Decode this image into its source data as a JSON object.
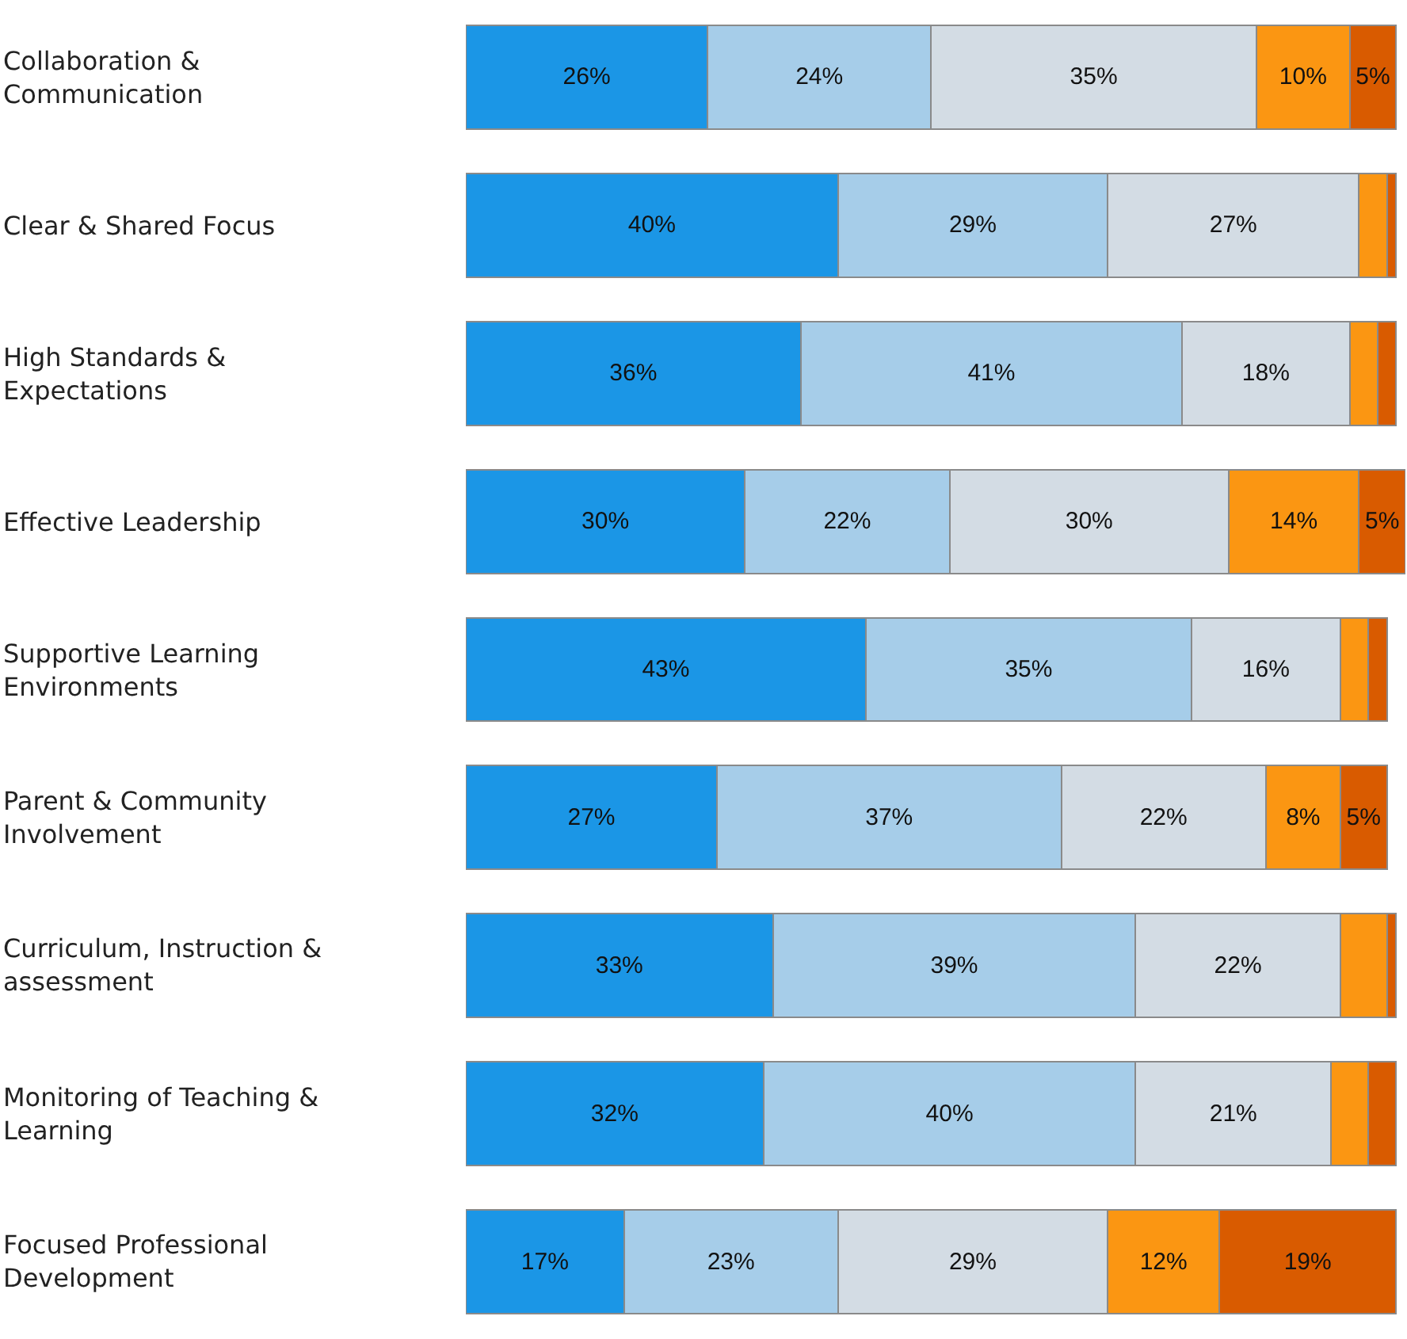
{
  "chart_data": {
    "type": "bar",
    "orientation": "horizontal",
    "stacked": true,
    "categories": [
      "Collaboration & Communication",
      "Clear & Shared Focus",
      "High Standards & Expectations",
      "Effective Leadership",
      "Supportive Learning Environments",
      "Parent & Community Involvement",
      "Curriculum, Instruction & assessment",
      "Monitoring of Teaching & Learning",
      "Focused Professional Development"
    ],
    "series": [
      {
        "color": "#1b96e6",
        "values": [
          26,
          40,
          36,
          30,
          43,
          27,
          33,
          32,
          17
        ],
        "value_labels": [
          "26%",
          "40%",
          "36%",
          "30%",
          "43%",
          "27%",
          "33%",
          "32%",
          "17%"
        ]
      },
      {
        "color": "#a6cde9",
        "values": [
          24,
          29,
          41,
          22,
          35,
          37,
          39,
          40,
          23
        ],
        "value_labels": [
          "24%",
          "29%",
          "41%",
          "22%",
          "35%",
          "37%",
          "39%",
          "40%",
          "23%"
        ]
      },
      {
        "color": "#d3dce4",
        "values": [
          35,
          27,
          18,
          30,
          16,
          22,
          22,
          21,
          29
        ],
        "value_labels": [
          "35%",
          "27%",
          "18%",
          "30%",
          "16%",
          "22%",
          "22%",
          "21%",
          "29%"
        ]
      },
      {
        "color": "#fb9612",
        "values": [
          10,
          3,
          3,
          14,
          3,
          8,
          5,
          4,
          12
        ],
        "value_labels": [
          "10%",
          null,
          null,
          "14%",
          null,
          "8%",
          null,
          null,
          "12%"
        ]
      },
      {
        "color": "#d95b00",
        "values": [
          5,
          1,
          2,
          5,
          2,
          5,
          1,
          3,
          19
        ],
        "value_labels": [
          "5%",
          null,
          null,
          "5%",
          null,
          "5%",
          null,
          null,
          "19%"
        ]
      }
    ],
    "xlim": [
      0,
      101
    ],
    "tick_labels": "y",
    "legend": false
  }
}
